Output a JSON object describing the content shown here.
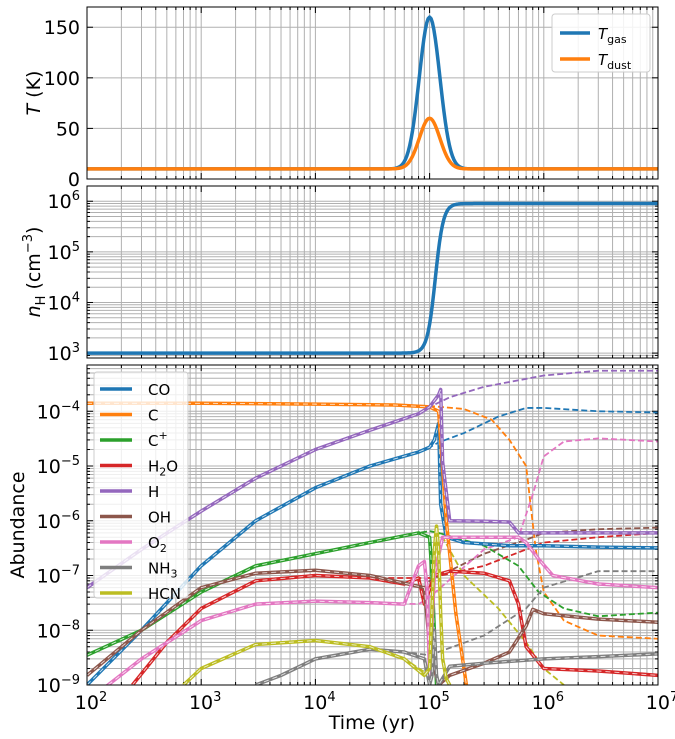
{
  "chart_data": [
    {
      "type": "line",
      "panel": "top",
      "xscale": "log",
      "xlim": [
        100,
        10000000
      ],
      "ylim": [
        0,
        170
      ],
      "ylabel_main": "T",
      "ylabel_unit": "(K)",
      "yticks": [
        "0",
        "50",
        "100",
        "150"
      ],
      "grid": true,
      "legend": "top-right",
      "series": [
        {
          "name": "T",
          "name_sub": "gas",
          "color": "#1f77b4",
          "baseline": 10,
          "peak": 160,
          "peak_x": 100000
        },
        {
          "name": "T",
          "name_sub": "dust",
          "color": "#ff7f0e",
          "baseline": 10,
          "peak": 60,
          "peak_x": 100000
        }
      ]
    },
    {
      "type": "line",
      "panel": "middle",
      "xscale": "log",
      "yscale": "log",
      "xlim": [
        100,
        10000000
      ],
      "ylim": [
        800,
        2000000
      ],
      "ylabel_main": "n",
      "ylabel_sub": "H",
      "ylabel_unit": "(cm",
      "ylabel_exp": "−3",
      "yticks": [
        {
          "base": "10",
          "exp": "3"
        },
        {
          "base": "10",
          "exp": "4"
        },
        {
          "base": "10",
          "exp": "5"
        },
        {
          "base": "10",
          "exp": "6"
        }
      ],
      "grid": true,
      "series": [
        {
          "color": "#1f77b4",
          "x": [
            100,
            80000,
            100000,
            120000,
            140000,
            10000000
          ],
          "y": [
            1000,
            1050,
            20000,
            600000,
            900000,
            900000
          ]
        }
      ]
    },
    {
      "type": "line",
      "panel": "bottom",
      "xscale": "log",
      "yscale": "log",
      "xlim": [
        100,
        10000000
      ],
      "ylim": [
        1e-09,
        0.0007
      ],
      "xlabel": "Time (yr)",
      "ylabel": "Abundance",
      "xticks": [
        {
          "base": "10",
          "exp": "2"
        },
        {
          "base": "10",
          "exp": "3"
        },
        {
          "base": "10",
          "exp": "4"
        },
        {
          "base": "10",
          "exp": "5"
        },
        {
          "base": "10",
          "exp": "6"
        },
        {
          "base": "10",
          "exp": "7"
        }
      ],
      "yticks": [
        {
          "base": "10",
          "exp": "−9"
        },
        {
          "base": "10",
          "exp": "−8"
        },
        {
          "base": "10",
          "exp": "−7"
        },
        {
          "base": "10",
          "exp": "−6"
        },
        {
          "base": "10",
          "exp": "−5"
        },
        {
          "base": "10",
          "exp": "−4"
        }
      ],
      "grid": true,
      "legend": "upper-left",
      "series": [
        {
          "name": "CO",
          "name_sup": "",
          "color": "#1f77b4",
          "solid": {
            "x": [
              100,
              300,
              1000,
              3000,
              10000,
              30000,
              80000,
              100000,
              110000,
              120000,
              125000,
              140000,
              200000,
              500000,
              1000000,
              3000000,
              10000000
            ],
            "y": [
              1e-09,
              1e-08,
              1.5e-07,
              1e-06,
              4e-06,
              1e-05,
              1.8e-05,
              2.2e-05,
              3e-05,
              6e-05,
              2e-06,
              5e-07,
              4e-07,
              3.5e-07,
              3.5e-07,
              3.3e-07,
              3.2e-07
            ]
          },
          "dashed": {
            "x": [
              100,
              300,
              1000,
              3000,
              10000,
              30000,
              80000,
              100000,
              120000,
              200000,
              400000,
              700000,
              1000000,
              3000000,
              10000000
            ],
            "y": [
              1e-09,
              1e-08,
              1.5e-07,
              1e-06,
              4e-06,
              1e-05,
              1.8e-05,
              2.2e-05,
              2.7e-05,
              4e-05,
              8e-05,
              0.000115,
              0.000115,
              0.0001,
              9.5e-05
            ]
          }
        },
        {
          "name": "C",
          "name_sup": "",
          "color": "#ff7f0e",
          "solid": {
            "x": [
              100,
              1000,
              10000,
              50000,
              100000,
              120000,
              140000,
              170000,
              210000
            ],
            "y": [
              0.00014,
              0.00014,
              0.000135,
              0.00013,
              0.00012,
              0.0001,
              1e-06,
              2e-08,
              1e-09
            ]
          },
          "dashed": {
            "x": [
              100,
              1000,
              10000,
              50000,
              100000,
              200000,
              350000,
              500000,
              700000,
              850000,
              1000000,
              1500000,
              3000000,
              10000000
            ],
            "y": [
              0.00014,
              0.00014,
              0.000135,
              0.00013,
              0.000125,
              0.00011,
              7e-05,
              3e-05,
              1e-05,
              3e-07,
              5e-08,
              1.5e-08,
              8e-09,
              7e-09
            ]
          }
        },
        {
          "name": "C",
          "name_sup": "+",
          "color": "#2ca02c",
          "solid": {
            "x": [
              100,
              300,
              1000,
              3000,
              10000,
              30000,
              80000,
              100000,
              105000,
              110000,
              115000
            ],
            "y": [
              3.5e-09,
              1e-08,
              5e-08,
              1.5e-07,
              2.5e-07,
              4e-07,
              6e-07,
              5e-07,
              1e-07,
              1e-08,
              1e-09
            ]
          },
          "dashed": {
            "x": [
              100,
              300,
              1000,
              3000,
              10000,
              30000,
              80000,
              100000,
              120000,
              300000,
              600000,
              900000,
              1500000,
              3000000,
              10000000
            ],
            "y": [
              3.5e-09,
              1e-08,
              5e-08,
              1.5e-07,
              2.5e-07,
              4e-07,
              6e-07,
              6.5e-07,
              6e-07,
              3.5e-07,
              1.5e-07,
              5e-08,
              2.5e-08,
              1.8e-08,
              2.1e-08
            ]
          }
        },
        {
          "name": "H",
          "name_sub": "2",
          "name_tail": "O",
          "color": "#d62728",
          "solid": {
            "x": [
              250,
              500,
              1000,
              3000,
              10000,
              30000,
              60000,
              80000,
              90000,
              110000,
              150000,
              300000,
              500000,
              600000,
              700000,
              1000000,
              3000000,
              10000000
            ],
            "y": [
              1e-09,
              6e-09,
              2.5e-08,
              8e-08,
              1e-07,
              9e-08,
              7e-08,
              9e-08,
              3e-08,
              1e-07,
              1.2e-07,
              1.1e-07,
              8e-08,
              3e-08,
              5e-09,
              2e-09,
              1.8e-09,
              1.5e-09
            ]
          },
          "dashed": {
            "x": [
              250,
              500,
              1000,
              3000,
              10000,
              30000,
              100000,
              300000,
              700000,
              1000000,
              3000000,
              10000000
            ],
            "y": [
              1e-09,
              6e-09,
              2.5e-08,
              8e-08,
              1e-07,
              9e-08,
              9e-08,
              1.5e-07,
              3e-07,
              4e-07,
              5e-07,
              6e-07
            ]
          }
        },
        {
          "name": "H",
          "name_sup": "",
          "color": "#9467bd",
          "solid": {
            "x": [
              100,
              300,
              1000,
              3000,
              10000,
              30000,
              80000,
              100000,
              120000,
              125000,
              130000,
              150000,
              300000,
              500000,
              600000,
              700000,
              1000000,
              3000000,
              10000000
            ],
            "y": [
              6e-08,
              3e-07,
              1.5e-06,
              6e-06,
              2e-05,
              4.5e-05,
              9e-05,
              0.00012,
              0.0002,
              0.00025,
              1.2e-05,
              1e-06,
              9.8e-07,
              9.5e-07,
              6e-07,
              6e-07,
              6e-07,
              6e-07,
              6e-07
            ]
          },
          "dashed": {
            "x": [
              100,
              300,
              1000,
              3000,
              10000,
              30000,
              80000,
              100000,
              150000,
              300000,
              1000000,
              3000000,
              10000000
            ],
            "y": [
              6e-08,
              3e-07,
              1.5e-06,
              6e-06,
              2e-05,
              4.5e-05,
              9e-05,
              0.00012,
              0.00018,
              0.00028,
              0.00045,
              0.00055,
              0.00055
            ]
          }
        },
        {
          "name": "OH",
          "name_sup": "",
          "color": "#8c564b",
          "solid": {
            "x": [
              100,
              300,
              1000,
              3000,
              10000,
              30000,
              90000,
              100000,
              110000,
              120000,
              150000,
              300000,
              500000,
              700000,
              800000,
              1000000,
              3000000,
              10000000
            ],
            "y": [
              1.5e-09,
              1e-08,
              6e-08,
              1.1e-07,
              1.25e-07,
              1e-07,
              6e-08,
              5e-09,
              2e-09,
              1e-09,
              1.5e-09,
              2.5e-09,
              4e-09,
              1.2e-08,
              2.4e-08,
              2e-08,
              1.6e-08,
              1.4e-08
            ]
          },
          "dashed": {
            "x": [
              100,
              300,
              1000,
              3000,
              10000,
              30000,
              90000,
              100000,
              300000,
              700000,
              1000000,
              3000000,
              10000000
            ],
            "y": [
              1.5e-09,
              1e-08,
              6e-08,
              1.1e-07,
              1.25e-07,
              1e-07,
              6e-08,
              8e-08,
              2.5e-07,
              4.5e-07,
              6e-07,
              7e-07,
              7.5e-07
            ]
          }
        },
        {
          "name": "O",
          "name_sub": "2",
          "name_tail": "",
          "color": "#e377c2",
          "solid": {
            "x": [
              100,
              300,
              1000,
              3000,
              10000,
              30000,
              60000,
              80000,
              90000,
              95000,
              100000,
              110000,
              130000,
              300000,
              600000,
              700000,
              900000,
              1200000,
              3000000,
              10000000
            ],
            "y": [
              5e-10,
              3e-09,
              1.5e-08,
              3e-08,
              3.4e-08,
              3.2e-08,
              3e-08,
              1.5e-07,
              1.8e-07,
              6e-08,
              1.5e-09,
              1e-07,
              5e-07,
              5e-07,
              5e-07,
              4e-07,
              2e-07,
              1e-07,
              7e-08,
              6e-08
            ]
          },
          "dashed": {
            "x": [
              100,
              300,
              1000,
              3000,
              10000,
              30000,
              80000,
              100000,
              300000,
              600000,
              800000,
              1000000,
              1500000,
              3000000,
              10000000
            ],
            "y": [
              5e-10,
              3e-09,
              1.5e-08,
              3e-08,
              3.4e-08,
              3.2e-08,
              3e-08,
              4e-08,
              3e-07,
              5e-07,
              3e-06,
              1.5e-05,
              2.8e-05,
              3.2e-05,
              2.8e-05
            ]
          }
        },
        {
          "name": "NH",
          "name_sub": "3",
          "name_tail": "",
          "color": "#7f7f7f",
          "solid": {
            "x": [
              3000,
              5000,
              10000,
              30000,
              60000,
              90000,
              100000,
              105000,
              110000,
              115000,
              120000,
              150000,
              300000,
              1000000,
              3000000,
              10000000
            ],
            "y": [
              1e-09,
              1.5e-09,
              3e-09,
              4.5e-09,
              4e-09,
              3e-09,
              1e-09,
              1.5e-09,
              1e-08,
              1.5e-09,
              1e-09,
              2.2e-09,
              2.5e-09,
              3e-09,
              3.3e-09,
              3.7e-09
            ]
          },
          "dashed": {
            "x": [
              3000,
              5000,
              10000,
              30000,
              60000,
              100000,
              300000,
              700000,
              1000000,
              3000000,
              10000000
            ],
            "y": [
              1e-09,
              1.5e-09,
              3e-09,
              4.5e-09,
              4e-09,
              3.5e-09,
              8e-09,
              2.5e-08,
              6e-08,
              1.2e-07,
              1.2e-07
            ]
          }
        },
        {
          "name": "HCN",
          "name_sup": "",
          "color": "#bcbd22",
          "solid": {
            "x": [
              700,
              1000,
              3000,
              10000,
              30000,
              60000,
              90000,
              100000,
              110000,
              115000,
              120000,
              125000,
              130000,
              140000,
              150000
            ],
            "y": [
              1e-09,
              2e-09,
              5.5e-09,
              6.5e-09,
              5e-09,
              3e-09,
              1.5e-09,
              2e-09,
              3e-07,
              8e-07,
              3e-07,
              2e-08,
              3e-09,
              1.3e-09,
              1e-09
            ]
          },
          "dashed": {
            "x": [
              700,
              1000,
              3000,
              10000,
              30000,
              60000,
              100000,
              115000,
              130000,
              200000,
              400000,
              700000,
              1000000,
              1500000
            ],
            "y": [
              1e-09,
              2e-09,
              5.5e-09,
              6.5e-09,
              5e-09,
              3e-09,
              1.5e-09,
              6e-07,
              5e-07,
              1e-07,
              2.5e-08,
              6e-09,
              2e-09,
              1e-09
            ]
          }
        }
      ]
    }
  ]
}
